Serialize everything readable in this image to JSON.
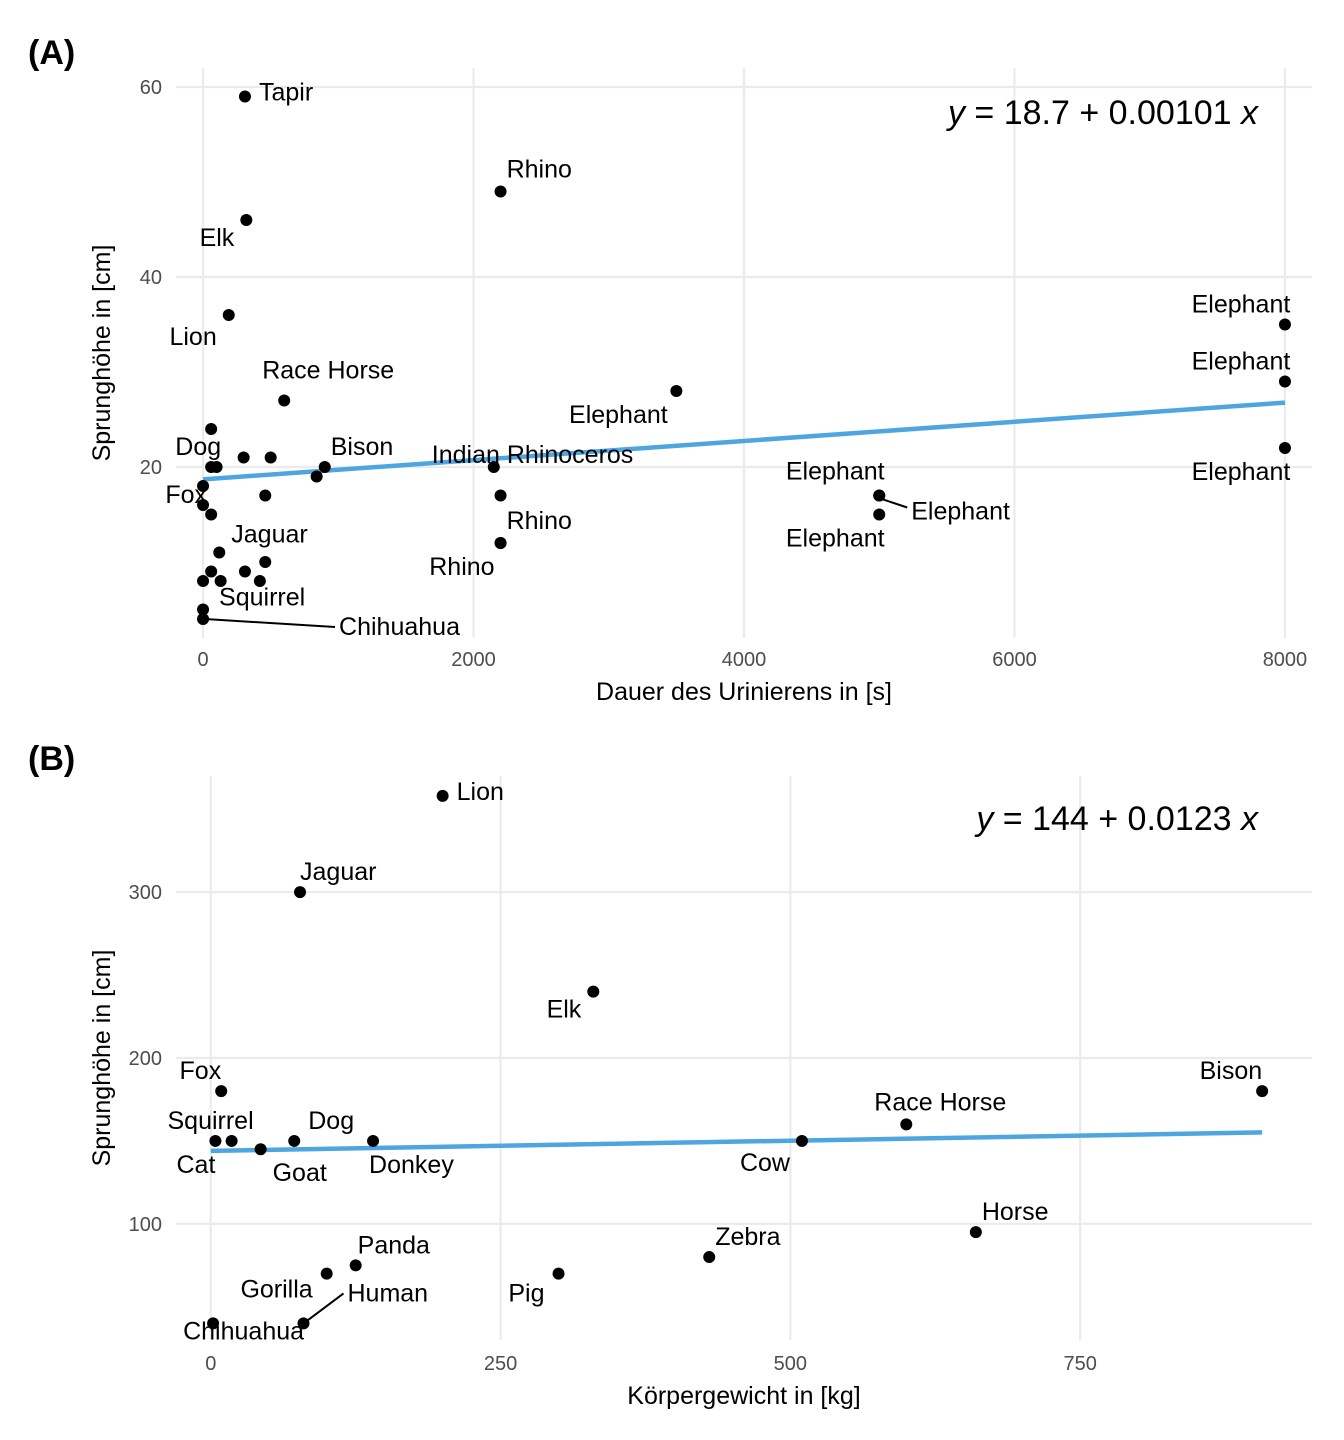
{
  "chart_data": [
    {
      "type": "scatter",
      "tag": "(A)",
      "xlabel": "Dauer des Urinierens in [s]",
      "ylabel": "Sprunghöhe in [cm]",
      "xlim": [
        -200,
        8200
      ],
      "ylim": [
        2,
        62
      ],
      "xticks": [
        0,
        2000,
        4000,
        6000,
        8000
      ],
      "yticks": [
        20,
        40,
        60
      ],
      "equation": {
        "y": "y",
        "rhs": " = 18.7 + 0.00101 ",
        "x": "x"
      },
      "fit": {
        "intercept": 18.7,
        "slope": 0.00101,
        "x_range": [
          0,
          8000
        ]
      },
      "grid": true,
      "points": [
        {
          "x": 310,
          "y": 59,
          "label": "Tapir"
        },
        {
          "x": 2200,
          "y": 49,
          "label": "Rhino"
        },
        {
          "x": 320,
          "y": 46,
          "label": "Elk"
        },
        {
          "x": 190,
          "y": 36,
          "label": "Lion"
        },
        {
          "x": 600,
          "y": 27,
          "label": "Race Horse"
        },
        {
          "x": 60,
          "y": 24,
          "label": ""
        },
        {
          "x": 300,
          "y": 21,
          "label": ""
        },
        {
          "x": 500,
          "y": 21,
          "label": ""
        },
        {
          "x": 60,
          "y": 20,
          "label": "Dog"
        },
        {
          "x": 100,
          "y": 20,
          "label": ""
        },
        {
          "x": 900,
          "y": 20,
          "label": "Bison"
        },
        {
          "x": 840,
          "y": 19,
          "label": ""
        },
        {
          "x": 2150,
          "y": 20,
          "label": "Indian Rhinoceros"
        },
        {
          "x": 3500,
          "y": 28,
          "label": "Elephant"
        },
        {
          "x": 0,
          "y": 18,
          "label": ""
        },
        {
          "x": 0,
          "y": 16,
          "label": "Fox"
        },
        {
          "x": 60,
          "y": 15,
          "label": ""
        },
        {
          "x": 460,
          "y": 17,
          "label": ""
        },
        {
          "x": 2200,
          "y": 17,
          "label": ""
        },
        {
          "x": 2200,
          "y": 12,
          "label": "Rhino"
        },
        {
          "x": 2200,
          "y": 12,
          "label": "Rhino"
        },
        {
          "x": 8000,
          "y": 35,
          "label": "Elephant"
        },
        {
          "x": 8000,
          "y": 29,
          "label": "Elephant"
        },
        {
          "x": 8000,
          "y": 22,
          "label": "Elephant"
        },
        {
          "x": 5000,
          "y": 17,
          "label": "Elephant"
        },
        {
          "x": 5000,
          "y": 17,
          "label": "Elephant"
        },
        {
          "x": 5000,
          "y": 15,
          "label": "Elephant"
        },
        {
          "x": 120,
          "y": 11,
          "label": "Jaguar"
        },
        {
          "x": 460,
          "y": 10,
          "label": ""
        },
        {
          "x": 60,
          "y": 9,
          "label": ""
        },
        {
          "x": 310,
          "y": 9,
          "label": ""
        },
        {
          "x": 0,
          "y": 8,
          "label": ""
        },
        {
          "x": 130,
          "y": 8,
          "label": ""
        },
        {
          "x": 420,
          "y": 8,
          "label": ""
        },
        {
          "x": 0,
          "y": 5,
          "label": "Squirrel"
        },
        {
          "x": 0,
          "y": 4,
          "label": "Chihuahua"
        }
      ]
    },
    {
      "type": "scatter",
      "tag": "(B)",
      "xlabel": "Körpergewicht in [kg]",
      "ylabel": "Sprunghöhe in [cm]",
      "xlim": [
        -30,
        950
      ],
      "ylim": [
        30,
        370
      ],
      "xticks": [
        0,
        250,
        500,
        750
      ],
      "yticks": [
        100,
        200,
        300
      ],
      "equation": {
        "y": "y",
        "rhs": " = 144 + 0.0123 ",
        "x": "x"
      },
      "fit": {
        "intercept": 144,
        "slope": 0.0123,
        "x_range": [
          0,
          907
        ]
      },
      "grid": true,
      "points": [
        {
          "x": 200,
          "y": 358,
          "label": "Lion"
        },
        {
          "x": 77,
          "y": 300,
          "label": "Jaguar"
        },
        {
          "x": 330,
          "y": 240,
          "label": "Elk"
        },
        {
          "x": 9,
          "y": 180,
          "label": "Fox"
        },
        {
          "x": 907,
          "y": 180,
          "label": "Bison"
        },
        {
          "x": 4,
          "y": 150,
          "label": "Cat"
        },
        {
          "x": 18,
          "y": 150,
          "label": "Squirrel"
        },
        {
          "x": 72,
          "y": 150,
          "label": "Dog"
        },
        {
          "x": 43,
          "y": 145,
          "label": "Goat"
        },
        {
          "x": 140,
          "y": 150,
          "label": "Donkey"
        },
        {
          "x": 510,
          "y": 150,
          "label": "Cow"
        },
        {
          "x": 600,
          "y": 160,
          "label": "Race Horse"
        },
        {
          "x": 660,
          "y": 95,
          "label": "Horse"
        },
        {
          "x": 430,
          "y": 80,
          "label": "Zebra"
        },
        {
          "x": 125,
          "y": 75,
          "label": "Panda"
        },
        {
          "x": 300,
          "y": 70,
          "label": "Pig"
        },
        {
          "x": 100,
          "y": 70,
          "label": "Gorilla"
        },
        {
          "x": 80,
          "y": 40,
          "label": "Human"
        },
        {
          "x": 2,
          "y": 40,
          "label": "Chihuahua"
        }
      ]
    }
  ]
}
